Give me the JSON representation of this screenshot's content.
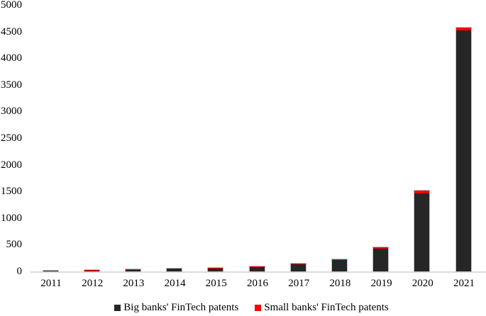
{
  "chart_data": {
    "type": "bar",
    "stacked": true,
    "title": "",
    "xlabel": "",
    "ylabel": "",
    "categories": [
      "2011",
      "2012",
      "2013",
      "2014",
      "2015",
      "2016",
      "2017",
      "2018",
      "2019",
      "2020",
      "2021"
    ],
    "series": [
      {
        "name": "Big banks' FinTech patents",
        "color": "#262626",
        "values": [
          15,
          18,
          30,
          48,
          60,
          85,
          130,
          210,
          430,
          1465,
          4520
        ]
      },
      {
        "name": "Small banks' FinTech patents",
        "color": "#ff0000",
        "values": [
          2,
          3,
          4,
          5,
          6,
          8,
          12,
          18,
          28,
          45,
          60
        ]
      }
    ],
    "ylim": [
      0,
      5000
    ],
    "ytick_step": 500,
    "ytick_labels": [
      "0",
      "500",
      "1000",
      "1500",
      "2000",
      "2500",
      "3000",
      "3500",
      "4000",
      "4500",
      "5000"
    ],
    "grid": false,
    "legend_position": "bottom",
    "colors": {
      "bar_border": "#bfbfbf",
      "axis_line": "#dcdcdc",
      "text": "#000000"
    }
  }
}
